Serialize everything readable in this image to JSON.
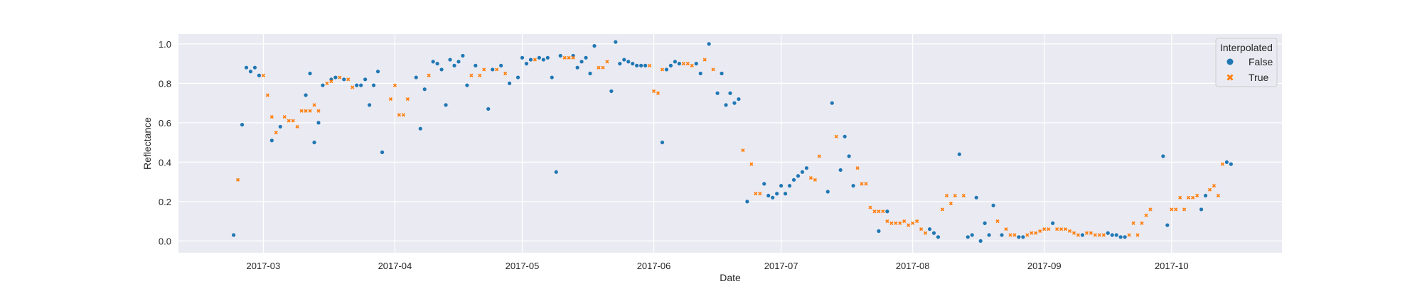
{
  "chart_data": {
    "type": "scatter",
    "xlabel": "Date",
    "ylabel": "Reflectance",
    "x_ticks": [
      "2017-03",
      "2017-04",
      "2017-05",
      "2017-06",
      "2017-07",
      "2017-08",
      "2017-09",
      "2017-10"
    ],
    "y_ticks": [
      "0.0",
      "0.2",
      "0.4",
      "0.6",
      "0.8",
      "1.0"
    ],
    "xlim": [
      "2017-02-09",
      "2017-10-27"
    ],
    "ylim": [
      -0.06,
      1.05
    ],
    "grid": true,
    "legend": {
      "title": "Interpolated",
      "placement": "top-right",
      "entries": [
        {
          "label": "False",
          "color": "#1f77b4",
          "marker": "circle"
        },
        {
          "label": "True",
          "color": "#ff7f0e",
          "marker": "x"
        }
      ]
    },
    "series": [
      {
        "name": "False",
        "color": "#1f77b4",
        "points": [
          [
            "2017-02-22",
            0.03
          ],
          [
            "2017-02-24",
            0.59
          ],
          [
            "2017-02-25",
            0.88
          ],
          [
            "2017-02-26",
            0.86
          ],
          [
            "2017-02-27",
            0.88
          ],
          [
            "2017-02-28",
            0.84
          ],
          [
            "2017-03-03",
            0.51
          ],
          [
            "2017-03-05",
            0.58
          ],
          [
            "2017-03-11",
            0.74
          ],
          [
            "2017-03-12",
            0.85
          ],
          [
            "2017-03-13",
            0.5
          ],
          [
            "2017-03-14",
            0.6
          ],
          [
            "2017-03-15",
            0.79
          ],
          [
            "2017-03-17",
            0.82
          ],
          [
            "2017-03-18",
            0.83
          ],
          [
            "2017-03-20",
            0.82
          ],
          [
            "2017-03-23",
            0.79
          ],
          [
            "2017-03-24",
            0.79
          ],
          [
            "2017-03-25",
            0.82
          ],
          [
            "2017-03-26",
            0.69
          ],
          [
            "2017-03-27",
            0.79
          ],
          [
            "2017-03-28",
            0.86
          ],
          [
            "2017-03-29",
            0.45
          ],
          [
            "2017-04-06",
            0.83
          ],
          [
            "2017-04-07",
            0.57
          ],
          [
            "2017-04-08",
            0.77
          ],
          [
            "2017-04-10",
            0.91
          ],
          [
            "2017-04-11",
            0.9
          ],
          [
            "2017-04-12",
            0.87
          ],
          [
            "2017-04-13",
            0.69
          ],
          [
            "2017-04-14",
            0.92
          ],
          [
            "2017-04-15",
            0.89
          ],
          [
            "2017-04-16",
            0.91
          ],
          [
            "2017-04-17",
            0.94
          ],
          [
            "2017-04-18",
            0.79
          ],
          [
            "2017-04-20",
            0.89
          ],
          [
            "2017-04-23",
            0.67
          ],
          [
            "2017-04-24",
            0.87
          ],
          [
            "2017-04-26",
            0.89
          ],
          [
            "2017-04-28",
            0.8
          ],
          [
            "2017-04-30",
            0.83
          ],
          [
            "2017-05-01",
            0.93
          ],
          [
            "2017-05-02",
            0.9
          ],
          [
            "2017-05-03",
            0.92
          ],
          [
            "2017-05-05",
            0.93
          ],
          [
            "2017-05-06",
            0.92
          ],
          [
            "2017-05-07",
            0.93
          ],
          [
            "2017-05-08",
            0.83
          ],
          [
            "2017-05-09",
            0.35
          ],
          [
            "2017-05-10",
            0.94
          ],
          [
            "2017-05-13",
            0.94
          ],
          [
            "2017-05-14",
            0.88
          ],
          [
            "2017-05-15",
            0.91
          ],
          [
            "2017-05-16",
            0.93
          ],
          [
            "2017-05-17",
            0.85
          ],
          [
            "2017-05-18",
            0.99
          ],
          [
            "2017-05-22",
            0.76
          ],
          [
            "2017-05-23",
            1.01
          ],
          [
            "2017-05-24",
            0.9
          ],
          [
            "2017-05-25",
            0.92
          ],
          [
            "2017-05-26",
            0.91
          ],
          [
            "2017-05-27",
            0.9
          ],
          [
            "2017-05-28",
            0.89
          ],
          [
            "2017-05-29",
            0.89
          ],
          [
            "2017-05-30",
            0.89
          ],
          [
            "2017-06-03",
            0.5
          ],
          [
            "2017-06-04",
            0.87
          ],
          [
            "2017-06-05",
            0.89
          ],
          [
            "2017-06-06",
            0.91
          ],
          [
            "2017-06-07",
            0.9
          ],
          [
            "2017-06-11",
            0.9
          ],
          [
            "2017-06-12",
            0.85
          ],
          [
            "2017-06-14",
            1.0
          ],
          [
            "2017-06-16",
            0.75
          ],
          [
            "2017-06-17",
            0.85
          ],
          [
            "2017-06-18",
            0.69
          ],
          [
            "2017-06-19",
            0.75
          ],
          [
            "2017-06-20",
            0.7
          ],
          [
            "2017-06-21",
            0.72
          ],
          [
            "2017-06-23",
            0.2
          ],
          [
            "2017-06-27",
            0.29
          ],
          [
            "2017-06-28",
            0.23
          ],
          [
            "2017-06-29",
            0.22
          ],
          [
            "2017-06-30",
            0.24
          ],
          [
            "2017-07-01",
            0.28
          ],
          [
            "2017-07-02",
            0.24
          ],
          [
            "2017-07-03",
            0.28
          ],
          [
            "2017-07-04",
            0.31
          ],
          [
            "2017-07-05",
            0.33
          ],
          [
            "2017-07-06",
            0.35
          ],
          [
            "2017-07-07",
            0.37
          ],
          [
            "2017-07-12",
            0.25
          ],
          [
            "2017-07-13",
            0.7
          ],
          [
            "2017-07-15",
            0.36
          ],
          [
            "2017-07-16",
            0.53
          ],
          [
            "2017-07-17",
            0.43
          ],
          [
            "2017-07-18",
            0.28
          ],
          [
            "2017-07-24",
            0.05
          ],
          [
            "2017-07-26",
            0.15
          ],
          [
            "2017-08-05",
            0.06
          ],
          [
            "2017-08-06",
            0.04
          ],
          [
            "2017-08-07",
            0.02
          ],
          [
            "2017-08-12",
            0.44
          ],
          [
            "2017-08-14",
            0.02
          ],
          [
            "2017-08-15",
            0.03
          ],
          [
            "2017-08-16",
            0.22
          ],
          [
            "2017-08-17",
            0.0
          ],
          [
            "2017-08-18",
            0.09
          ],
          [
            "2017-08-19",
            0.03
          ],
          [
            "2017-08-20",
            0.18
          ],
          [
            "2017-08-22",
            0.03
          ],
          [
            "2017-08-26",
            0.02
          ],
          [
            "2017-08-27",
            0.02
          ],
          [
            "2017-09-03",
            0.09
          ],
          [
            "2017-09-10",
            0.03
          ],
          [
            "2017-09-16",
            0.04
          ],
          [
            "2017-09-17",
            0.03
          ],
          [
            "2017-09-18",
            0.03
          ],
          [
            "2017-09-19",
            0.02
          ],
          [
            "2017-09-20",
            0.02
          ],
          [
            "2017-09-29",
            0.43
          ],
          [
            "2017-09-30",
            0.08
          ],
          [
            "2017-10-08",
            0.16
          ],
          [
            "2017-10-09",
            0.23
          ],
          [
            "2017-10-14",
            0.4
          ],
          [
            "2017-10-15",
            0.39
          ]
        ]
      },
      {
        "name": "True",
        "color": "#ff7f0e",
        "points": [
          [
            "2017-02-23",
            0.31
          ],
          [
            "2017-03-01",
            0.84
          ],
          [
            "2017-03-02",
            0.74
          ],
          [
            "2017-03-03",
            0.63
          ],
          [
            "2017-03-04",
            0.55
          ],
          [
            "2017-03-06",
            0.63
          ],
          [
            "2017-03-07",
            0.61
          ],
          [
            "2017-03-08",
            0.61
          ],
          [
            "2017-03-09",
            0.58
          ],
          [
            "2017-03-10",
            0.66
          ],
          [
            "2017-03-11",
            0.66
          ],
          [
            "2017-03-12",
            0.66
          ],
          [
            "2017-03-13",
            0.69
          ],
          [
            "2017-03-14",
            0.66
          ],
          [
            "2017-03-16",
            0.8
          ],
          [
            "2017-03-17",
            0.81
          ],
          [
            "2017-03-19",
            0.83
          ],
          [
            "2017-03-21",
            0.82
          ],
          [
            "2017-03-22",
            0.78
          ],
          [
            "2017-03-31",
            0.72
          ],
          [
            "2017-04-01",
            0.79
          ],
          [
            "2017-04-02",
            0.64
          ],
          [
            "2017-04-03",
            0.64
          ],
          [
            "2017-04-04",
            0.72
          ],
          [
            "2017-04-09",
            0.84
          ],
          [
            "2017-04-19",
            0.84
          ],
          [
            "2017-04-21",
            0.84
          ],
          [
            "2017-04-22",
            0.87
          ],
          [
            "2017-04-25",
            0.87
          ],
          [
            "2017-04-27",
            0.85
          ],
          [
            "2017-05-04",
            0.92
          ],
          [
            "2017-05-11",
            0.93
          ],
          [
            "2017-05-12",
            0.93
          ],
          [
            "2017-05-13",
            0.93
          ],
          [
            "2017-05-19",
            0.88
          ],
          [
            "2017-05-20",
            0.88
          ],
          [
            "2017-05-21",
            0.91
          ],
          [
            "2017-05-31",
            0.89
          ],
          [
            "2017-06-01",
            0.76
          ],
          [
            "2017-06-02",
            0.75
          ],
          [
            "2017-06-03",
            0.87
          ],
          [
            "2017-06-08",
            0.9
          ],
          [
            "2017-06-09",
            0.9
          ],
          [
            "2017-06-10",
            0.89
          ],
          [
            "2017-06-13",
            0.92
          ],
          [
            "2017-06-15",
            0.87
          ],
          [
            "2017-06-22",
            0.46
          ],
          [
            "2017-06-24",
            0.39
          ],
          [
            "2017-06-25",
            0.24
          ],
          [
            "2017-06-26",
            0.24
          ],
          [
            "2017-07-08",
            0.32
          ],
          [
            "2017-07-09",
            0.31
          ],
          [
            "2017-07-10",
            0.43
          ],
          [
            "2017-07-14",
            0.53
          ],
          [
            "2017-07-19",
            0.37
          ],
          [
            "2017-07-20",
            0.29
          ],
          [
            "2017-07-21",
            0.29
          ],
          [
            "2017-07-22",
            0.17
          ],
          [
            "2017-07-23",
            0.15
          ],
          [
            "2017-07-24",
            0.15
          ],
          [
            "2017-07-25",
            0.15
          ],
          [
            "2017-07-26",
            0.1
          ],
          [
            "2017-07-27",
            0.09
          ],
          [
            "2017-07-28",
            0.09
          ],
          [
            "2017-07-29",
            0.09
          ],
          [
            "2017-07-30",
            0.1
          ],
          [
            "2017-07-31",
            0.08
          ],
          [
            "2017-08-01",
            0.09
          ],
          [
            "2017-08-02",
            0.1
          ],
          [
            "2017-08-03",
            0.06
          ],
          [
            "2017-08-04",
            0.04
          ],
          [
            "2017-08-08",
            0.16
          ],
          [
            "2017-08-09",
            0.23
          ],
          [
            "2017-08-10",
            0.19
          ],
          [
            "2017-08-11",
            0.23
          ],
          [
            "2017-08-13",
            0.23
          ],
          [
            "2017-08-21",
            0.1
          ],
          [
            "2017-08-23",
            0.06
          ],
          [
            "2017-08-24",
            0.03
          ],
          [
            "2017-08-25",
            0.03
          ],
          [
            "2017-08-28",
            0.03
          ],
          [
            "2017-08-29",
            0.04
          ],
          [
            "2017-08-30",
            0.04
          ],
          [
            "2017-08-31",
            0.05
          ],
          [
            "2017-09-01",
            0.06
          ],
          [
            "2017-09-02",
            0.06
          ],
          [
            "2017-09-04",
            0.06
          ],
          [
            "2017-09-05",
            0.06
          ],
          [
            "2017-09-06",
            0.06
          ],
          [
            "2017-09-07",
            0.05
          ],
          [
            "2017-09-08",
            0.04
          ],
          [
            "2017-09-09",
            0.03
          ],
          [
            "2017-09-11",
            0.04
          ],
          [
            "2017-09-12",
            0.04
          ],
          [
            "2017-09-13",
            0.03
          ],
          [
            "2017-09-14",
            0.03
          ],
          [
            "2017-09-15",
            0.03
          ],
          [
            "2017-09-21",
            0.03
          ],
          [
            "2017-09-22",
            0.09
          ],
          [
            "2017-09-23",
            0.03
          ],
          [
            "2017-09-24",
            0.09
          ],
          [
            "2017-09-25",
            0.13
          ],
          [
            "2017-09-26",
            0.16
          ],
          [
            "2017-10-01",
            0.16
          ],
          [
            "2017-10-02",
            0.16
          ],
          [
            "2017-10-03",
            0.22
          ],
          [
            "2017-10-04",
            0.16
          ],
          [
            "2017-10-05",
            0.22
          ],
          [
            "2017-10-06",
            0.22
          ],
          [
            "2017-10-07",
            0.23
          ],
          [
            "2017-10-10",
            0.26
          ],
          [
            "2017-10-11",
            0.28
          ],
          [
            "2017-10-12",
            0.23
          ],
          [
            "2017-10-13",
            0.39
          ]
        ]
      }
    ]
  }
}
